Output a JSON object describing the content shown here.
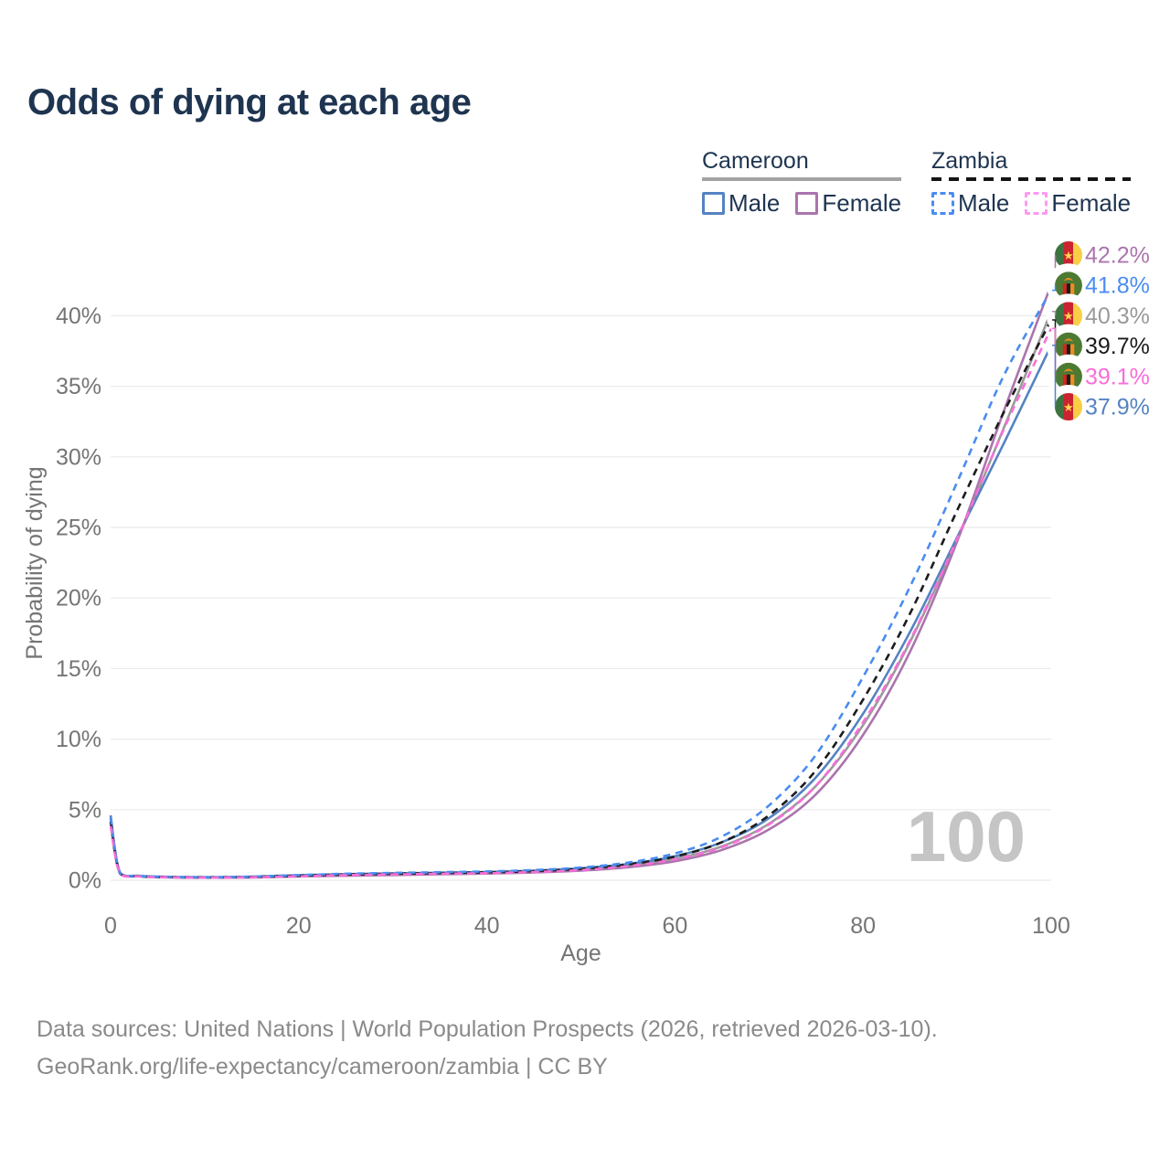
{
  "title": "Odds of dying at each age",
  "legend": {
    "groups": [
      {
        "name": "Cameroon",
        "style": "solid",
        "items": [
          {
            "label": "Male",
            "series_key": "cameroon-male"
          },
          {
            "label": "Female",
            "series_key": "cameroon-female"
          }
        ]
      },
      {
        "name": "Zambia",
        "style": "dashed",
        "items": [
          {
            "label": "Male",
            "series_key": "zambia-male"
          },
          {
            "label": "Female",
            "series_key": "zambia-female"
          }
        ]
      }
    ]
  },
  "watermark": "100",
  "footer": {
    "line1": "Data sources: United Nations | World Population Prospects (2026, retrieved 2026-03-10).",
    "line2": "GeoRank.org/life-expectancy/cameroon/zambia | CC BY"
  },
  "colors": {
    "title": "#1e3450",
    "legend_text": "#1e3450",
    "axis_text": "#757575",
    "grid": "#ebebeb",
    "watermark": "#c5c5c5",
    "footer_text": "#8a8a8a",
    "cameroon_underline": "#a3a3a3",
    "zambia_underline": "#141414",
    "zambia_female_checkbox": "#fc9af0"
  },
  "flag_colors": {
    "cameroon": {
      "green": "#3c7340",
      "red": "#cc2330",
      "yellow": "#f7ce46",
      "star": "#ffd94a"
    },
    "zambia": {
      "green": "#4c7a33",
      "red": "#d2281e",
      "black": "#1d1d1d",
      "orange": "#ef8c1f",
      "eagle": "#ef8c1f"
    }
  },
  "end_labels": [
    {
      "value_label": "42.2%",
      "series_key": "cameroon-female"
    },
    {
      "value_label": "41.8%",
      "series_key": "zambia-male"
    },
    {
      "value_label": "40.3%",
      "series_key": "cameroon"
    },
    {
      "value_label": "39.7%",
      "series_key": "zambia"
    },
    {
      "value_label": "39.1%",
      "series_key": "zambia-female"
    },
    {
      "value_label": "37.9%",
      "series_key": "cameroon-male"
    }
  ],
  "chart_data": {
    "type": "line",
    "title": "Odds of dying at each age",
    "xlabel": "Age",
    "ylabel": "Probability of dying",
    "grid": "horizontal",
    "legend_position": "top-right",
    "x_axis": {
      "label": "Age",
      "ticks": [
        0,
        20,
        40,
        60,
        80,
        100
      ],
      "range": [
        0,
        100
      ]
    },
    "y_axis": {
      "label": "Probability of dying",
      "ticks": [
        "0%",
        "5%",
        "10%",
        "15%",
        "20%",
        "25%",
        "30%",
        "35%",
        "40%"
      ],
      "range_pct": [
        0,
        44
      ]
    },
    "x": [
      0,
      1,
      3,
      5,
      10,
      15,
      20,
      25,
      30,
      35,
      40,
      45,
      50,
      55,
      60,
      65,
      70,
      75,
      80,
      85,
      90,
      95,
      100
    ],
    "series": [
      {
        "key": "cameroon",
        "name": "Cameroon (all)",
        "country": "Cameroon",
        "sex": "All",
        "color": "#9a9a9a",
        "dash": "solid",
        "end_value_pct": 40.3,
        "values": [
          4.35,
          0.52,
          0.3,
          0.24,
          0.2,
          0.23,
          0.31,
          0.37,
          0.42,
          0.47,
          0.52,
          0.61,
          0.76,
          1.03,
          1.52,
          2.4,
          4.0,
          6.7,
          11.0,
          16.9,
          24.1,
          32.1,
          40.3
        ]
      },
      {
        "key": "cameroon-male",
        "name": "Cameroon Male",
        "country": "Cameroon",
        "sex": "Male",
        "color": "#5583c1",
        "dash": "solid",
        "end_value_pct": 37.9,
        "values": [
          4.6,
          0.55,
          0.32,
          0.26,
          0.22,
          0.26,
          0.36,
          0.43,
          0.48,
          0.53,
          0.58,
          0.68,
          0.85,
          1.15,
          1.7,
          2.7,
          4.4,
          7.3,
          11.8,
          17.6,
          24.3,
          31.0,
          37.9
        ]
      },
      {
        "key": "cameroon-female",
        "name": "Cameroon Female",
        "country": "Cameroon",
        "sex": "Female",
        "color": "#ab74ad",
        "dash": "solid",
        "end_value_pct": 42.2,
        "values": [
          4.1,
          0.48,
          0.28,
          0.22,
          0.18,
          0.2,
          0.27,
          0.32,
          0.37,
          0.42,
          0.47,
          0.55,
          0.68,
          0.92,
          1.35,
          2.15,
          3.6,
          6.1,
          10.3,
          16.2,
          24.0,
          33.3,
          42.2
        ]
      },
      {
        "key": "zambia",
        "name": "Zambia (all)",
        "country": "Zambia",
        "sex": "All",
        "color": "#1c1c1c",
        "dash": "dashed",
        "end_value_pct": 39.7,
        "values": [
          4.15,
          0.49,
          0.28,
          0.23,
          0.2,
          0.23,
          0.32,
          0.41,
          0.46,
          0.51,
          0.56,
          0.65,
          0.81,
          1.12,
          1.68,
          2.7,
          4.6,
          7.8,
          12.8,
          18.9,
          26.2,
          33.2,
          39.7
        ]
      },
      {
        "key": "zambia-male",
        "name": "Zambia Male",
        "country": "Zambia",
        "sex": "Male",
        "color": "#4a8cf0",
        "dash": "dashed",
        "end_value_pct": 41.8,
        "values": [
          4.45,
          0.52,
          0.3,
          0.25,
          0.21,
          0.25,
          0.36,
          0.46,
          0.52,
          0.57,
          0.62,
          0.72,
          0.9,
          1.25,
          1.9,
          3.1,
          5.3,
          8.9,
          14.4,
          20.8,
          28.2,
          35.8,
          41.8
        ]
      },
      {
        "key": "zambia-female",
        "name": "Zambia Female",
        "country": "Zambia",
        "sex": "Female",
        "color": "#f86ed8",
        "dash": "dashed",
        "end_value_pct": 39.1,
        "values": [
          3.85,
          0.46,
          0.27,
          0.22,
          0.18,
          0.21,
          0.28,
          0.36,
          0.41,
          0.46,
          0.5,
          0.58,
          0.72,
          1.0,
          1.48,
          2.35,
          3.95,
          6.7,
          11.2,
          17.0,
          24.2,
          32.0,
          39.1
        ]
      }
    ]
  }
}
